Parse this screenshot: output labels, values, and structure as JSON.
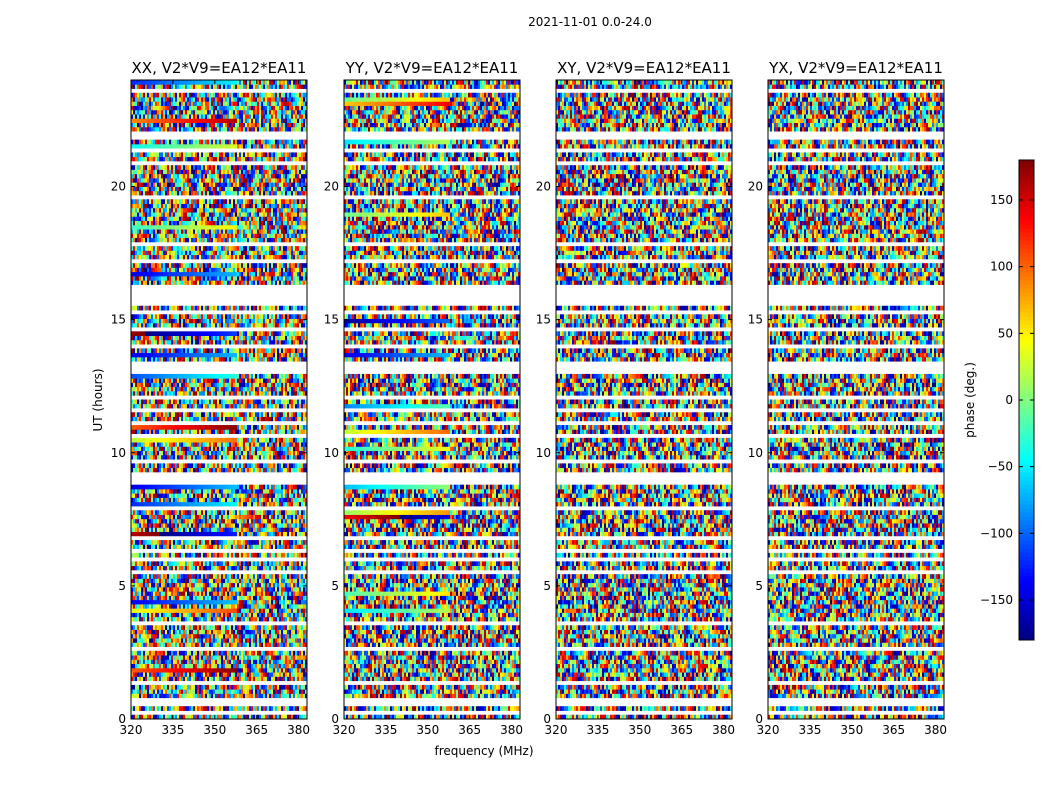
{
  "figure_title": "2021-11-01 0.0-24.0",
  "chart_data": {
    "type": "heatmap",
    "colormap": "jet",
    "x_range_mhz": [
      320,
      383
    ],
    "y_range_hours": [
      0,
      24
    ],
    "xlabel": "frequency (MHz)",
    "ylabel": "UT (hours)",
    "x_ticks": [
      320,
      335,
      350,
      365,
      380
    ],
    "y_ticks": [
      0,
      5,
      10,
      15,
      20
    ],
    "colorbar": {
      "label": "phase (deg.)",
      "range": [
        -180,
        180
      ],
      "ticks": [
        -150,
        -100,
        -50,
        0,
        50,
        100,
        150
      ],
      "tick_labels": [
        "−150",
        "−100",
        "−50",
        "0",
        "50",
        "100",
        "150"
      ]
    },
    "panels": [
      {
        "title": "XX, V2*V9=EA12*EA11",
        "polarization": "XX"
      },
      {
        "title": "YY, V2*V9=EA12*EA11",
        "polarization": "YY"
      },
      {
        "title": "XY, V2*V9=EA12*EA11",
        "polarization": "XY"
      },
      {
        "title": "YX, V2*V9=EA12*EA11",
        "polarization": "YX"
      }
    ],
    "flagged_time_ranges_hours": [
      [
        0.2,
        0.3
      ],
      [
        0.55,
        0.8
      ],
      [
        1.35,
        1.45
      ],
      [
        1.55,
        1.65
      ],
      [
        2.6,
        2.7
      ],
      [
        2.85,
        2.95
      ],
      [
        3.55,
        3.65
      ],
      [
        4.9,
        5.0
      ],
      [
        5.5,
        5.6
      ],
      [
        6.0,
        6.1
      ],
      [
        6.3,
        6.4
      ],
      [
        6.7,
        6.8
      ],
      [
        7.0,
        7.1
      ],
      [
        7.45,
        7.55
      ],
      [
        7.85,
        8.0
      ],
      [
        8.4,
        8.5
      ],
      [
        8.8,
        9.3
      ],
      [
        9.6,
        9.7
      ],
      [
        10.25,
        10.3
      ],
      [
        10.6,
        10.7
      ],
      [
        11.1,
        11.2
      ],
      [
        11.6,
        11.7
      ],
      [
        12.05,
        12.15
      ],
      [
        12.6,
        12.7
      ],
      [
        13.0,
        13.5
      ],
      [
        13.9,
        14.0
      ],
      [
        14.6,
        14.7
      ],
      [
        15.2,
        15.3
      ],
      [
        15.6,
        16.35
      ],
      [
        17.1,
        17.25
      ],
      [
        17.75,
        17.85
      ],
      [
        18.2,
        18.3
      ],
      [
        18.85,
        18.95
      ],
      [
        19.55,
        19.6
      ],
      [
        20.8,
        21.0
      ],
      [
        21.35,
        21.45
      ],
      [
        21.8,
        22.05
      ],
      [
        22.8,
        22.9
      ],
      [
        23.5,
        23.6
      ]
    ]
  }
}
